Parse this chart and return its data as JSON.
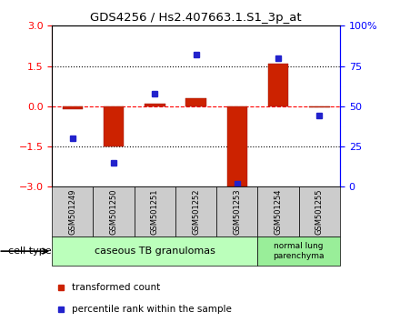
{
  "title": "GDS4256 / Hs2.407663.1.S1_3p_at",
  "samples": [
    "GSM501249",
    "GSM501250",
    "GSM501251",
    "GSM501252",
    "GSM501253",
    "GSM501254",
    "GSM501255"
  ],
  "red_values": [
    -0.1,
    -1.5,
    0.1,
    0.3,
    -3.0,
    1.6,
    -0.05
  ],
  "blue_values": [
    30,
    15,
    58,
    82,
    2,
    80,
    44
  ],
  "ylim_left": [
    -3,
    3
  ],
  "ylim_right": [
    0,
    100
  ],
  "yticks_left": [
    -3,
    -1.5,
    0,
    1.5,
    3
  ],
  "yticks_right": [
    0,
    25,
    50,
    75,
    100
  ],
  "yticklabels_right": [
    "0",
    "25",
    "50",
    "75",
    "100%"
  ],
  "group1_label": "caseous TB granulomas",
  "group1_indices": [
    0,
    1,
    2,
    3,
    4
  ],
  "group2_label": "normal lung\nparenchyma",
  "group2_indices": [
    5,
    6
  ],
  "cell_type_label": "cell type",
  "legend_red": "transformed count",
  "legend_blue": "percentile rank within the sample",
  "bar_color": "#cc2200",
  "dot_color": "#2222cc",
  "group1_color": "#bbffbb",
  "group2_color": "#99ee99",
  "label_bg_color": "#cccccc",
  "bar_width": 0.5,
  "bar_edge_color": "#991100"
}
